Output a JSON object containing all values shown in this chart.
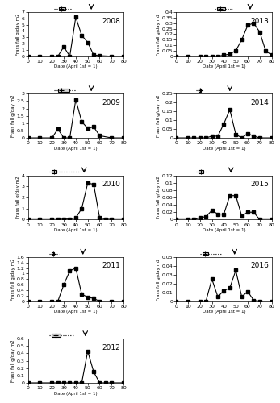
{
  "years": [
    2008,
    2009,
    2010,
    2011,
    2012,
    2013,
    2014,
    2015,
    2016
  ],
  "frass_data": {
    "2008": {
      "x": [
        0,
        10,
        20,
        25,
        30,
        35,
        40,
        45,
        50,
        55,
        60,
        70,
        80
      ],
      "y": [
        0,
        0,
        0,
        0,
        1.5,
        0,
        6.2,
        3.3,
        2.2,
        0.2,
        0.1,
        0,
        0
      ]
    },
    "2009": {
      "x": [
        0,
        10,
        20,
        25,
        30,
        35,
        40,
        45,
        50,
        55,
        60,
        70,
        80
      ],
      "y": [
        0,
        0,
        0,
        0.6,
        0,
        0,
        2.6,
        1.1,
        0.65,
        0.75,
        0.15,
        0,
        0
      ]
    },
    "2010": {
      "x": [
        0,
        10,
        20,
        25,
        30,
        35,
        40,
        45,
        50,
        55,
        60,
        65,
        70,
        80
      ],
      "y": [
        0,
        0,
        0,
        0,
        0.05,
        0.05,
        0.15,
        1.0,
        3.3,
        3.2,
        0.15,
        0.05,
        0,
        0
      ]
    },
    "2011": {
      "x": [
        0,
        10,
        20,
        25,
        30,
        35,
        40,
        45,
        50,
        55,
        60,
        70,
        80
      ],
      "y": [
        0,
        0,
        0,
        0,
        0.6,
        1.1,
        1.2,
        0.25,
        0.15,
        0.1,
        0,
        0,
        0
      ]
    },
    "2012": {
      "x": [
        0,
        10,
        20,
        25,
        30,
        35,
        40,
        45,
        50,
        55,
        60,
        65,
        70,
        80
      ],
      "y": [
        0,
        0,
        0,
        0,
        0,
        0,
        0,
        0,
        0.43,
        0.15,
        0,
        0,
        0,
        0
      ]
    },
    "2013": {
      "x": [
        0,
        10,
        20,
        25,
        30,
        35,
        40,
        45,
        50,
        55,
        60,
        65,
        70,
        75,
        80
      ],
      "y": [
        0,
        0,
        0,
        0,
        0,
        0,
        0.01,
        0.02,
        0.05,
        0.15,
        0.28,
        0.3,
        0.22,
        0.05,
        0.01
      ]
    },
    "2014": {
      "x": [
        0,
        10,
        15,
        20,
        25,
        30,
        35,
        40,
        45,
        50,
        55,
        60,
        65,
        70,
        80
      ],
      "y": [
        0,
        0,
        0,
        0,
        0,
        0.01,
        0.01,
        0.08,
        0.16,
        0.02,
        0,
        0.025,
        0.01,
        0,
        0
      ]
    },
    "2015": {
      "x": [
        0,
        10,
        15,
        20,
        25,
        30,
        35,
        40,
        45,
        50,
        55,
        60,
        65,
        70,
        80
      ],
      "y": [
        0,
        0,
        0,
        0.005,
        0.008,
        0.025,
        0.015,
        0.015,
        0.065,
        0.065,
        0.01,
        0.02,
        0.02,
        0,
        0
      ]
    },
    "2016": {
      "x": [
        0,
        10,
        20,
        25,
        30,
        35,
        40,
        45,
        50,
        55,
        60,
        65,
        70,
        80
      ],
      "y": [
        0,
        0,
        0,
        0,
        0.025,
        0.005,
        0.012,
        0.015,
        0.035,
        0.005,
        0.011,
        0.001,
        0,
        0
      ]
    }
  },
  "egg_data": {
    "2008": {
      "median": 28,
      "q1": 26,
      "q3": 31,
      "min": 22,
      "max": 36,
      "arrow": 53
    },
    "2009": {
      "median": 28,
      "q1": 25,
      "q3": 35,
      "min": 22,
      "max": 40,
      "arrow": 53
    },
    "2010": {
      "median": 22,
      "q1": 20,
      "q3": 24,
      "min": 18,
      "max": 45,
      "arrow": 47
    },
    "2011": {
      "median": 21,
      "q1": 20,
      "q3": 22,
      "min": 18,
      "max": 26,
      "arrow": 46
    },
    "2012": {
      "median": 23,
      "q1": 20,
      "q3": 27,
      "min": 18,
      "max": 38,
      "arrow": 48
    },
    "2013": {
      "median": 37,
      "q1": 34,
      "q3": 41,
      "min": 32,
      "max": 47,
      "arrow": 62
    },
    "2014": {
      "median": 20,
      "q1": 19,
      "q3": 21,
      "min": 17,
      "max": 23,
      "arrow": 45
    },
    "2015": {
      "median": 21,
      "q1": 19,
      "q3": 23,
      "min": 17,
      "max": 27,
      "arrow": 46
    },
    "2016": {
      "median": 24,
      "q1": 22,
      "q3": 27,
      "min": 20,
      "max": 38,
      "arrow": 49
    }
  },
  "ylims": {
    "2008": [
      0,
      7
    ],
    "2009": [
      0,
      3
    ],
    "2010": [
      0,
      4
    ],
    "2011": [
      0,
      1.6
    ],
    "2012": [
      0,
      0.6
    ],
    "2013": [
      0,
      0.4
    ],
    "2014": [
      0,
      0.25
    ],
    "2015": [
      0,
      0.12
    ],
    "2016": [
      0,
      0.05
    ]
  },
  "yticks": {
    "2008": [
      0,
      1,
      2,
      3,
      4,
      5,
      6,
      7
    ],
    "2009": [
      0,
      0.5,
      1.0,
      1.5,
      2.0,
      2.5,
      3.0
    ],
    "2010": [
      0,
      1,
      2,
      3,
      4
    ],
    "2011": [
      0,
      0.2,
      0.4,
      0.6,
      0.8,
      1.0,
      1.2,
      1.4,
      1.6
    ],
    "2012": [
      0,
      0.1,
      0.2,
      0.3,
      0.4,
      0.5,
      0.6
    ],
    "2013": [
      0,
      0.05,
      0.1,
      0.15,
      0.2,
      0.25,
      0.3,
      0.35,
      0.4
    ],
    "2014": [
      0,
      0.05,
      0.1,
      0.15,
      0.2,
      0.25
    ],
    "2015": [
      0,
      0.02,
      0.04,
      0.06,
      0.08,
      0.1,
      0.12
    ],
    "2016": [
      0,
      0.01,
      0.02,
      0.03,
      0.04,
      0.05
    ]
  },
  "xlabel": "Date (April 1st = 1)",
  "ylabel": "Frass fall g/day m2"
}
